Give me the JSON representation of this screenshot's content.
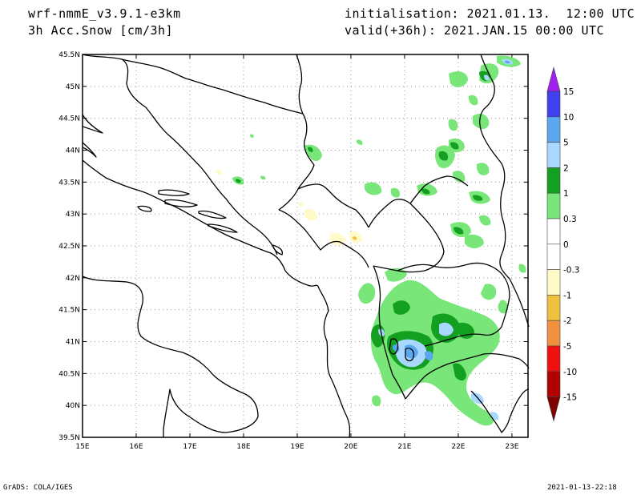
{
  "header": {
    "model": "wrf-nmmE_v3.9.1-e3km",
    "variable": "3h Acc.Snow [cm/3h]",
    "init": "initialisation: 2021.01.13.  12:00 UTC",
    "valid": "valid(+36h): 2021.JAN.15 00:00 UTC"
  },
  "footer": {
    "left": "GrADS: COLA/IGES",
    "right": "2021-01-13-22:18"
  },
  "map": {
    "lon_range": [
      15,
      23.3
    ],
    "lat_range": [
      39.5,
      45.5
    ],
    "lon_ticks": [
      {
        "value": 15,
        "label": "15E"
      },
      {
        "value": 16,
        "label": "16E"
      },
      {
        "value": 17,
        "label": "17E"
      },
      {
        "value": 18,
        "label": "18E"
      },
      {
        "value": 19,
        "label": "19E"
      },
      {
        "value": 20,
        "label": "20E"
      },
      {
        "value": 21,
        "label": "21E"
      },
      {
        "value": 22,
        "label": "22E"
      },
      {
        "value": 23,
        "label": "23E"
      }
    ],
    "lat_ticks": [
      {
        "value": 39.5,
        "label": "39.5N"
      },
      {
        "value": 40,
        "label": "40N"
      },
      {
        "value": 40.5,
        "label": "40.5N"
      },
      {
        "value": 41,
        "label": "41N"
      },
      {
        "value": 41.5,
        "label": "41.5N"
      },
      {
        "value": 42,
        "label": "42N"
      },
      {
        "value": 42.5,
        "label": "42.5N"
      },
      {
        "value": 43,
        "label": "43N"
      },
      {
        "value": 43.5,
        "label": "43.5N"
      },
      {
        "value": 44,
        "label": "44N"
      },
      {
        "value": 44.5,
        "label": "44.5N"
      },
      {
        "value": 45,
        "label": "45N"
      },
      {
        "value": 45.5,
        "label": "45.5N"
      }
    ],
    "grid": true
  },
  "legend": {
    "classes": [
      {
        "label": "15",
        "color": "#a020f0"
      },
      {
        "label": "10",
        "color": "#4040f0"
      },
      {
        "label": "5",
        "color": "#5ba8f0"
      },
      {
        "label": "2",
        "color": "#a8d8ff"
      },
      {
        "label": "1",
        "color": "#13a020"
      },
      {
        "label": "0.3",
        "color": "#78e678"
      },
      {
        "label": "0",
        "color": "#ffffff"
      },
      {
        "label": "-0.3",
        "color": "#ffffff"
      },
      {
        "label": "-1",
        "color": "#fffac8"
      },
      {
        "label": "-2",
        "color": "#f0c040"
      },
      {
        "label": "-5",
        "color": "#f09040"
      },
      {
        "label": "-10",
        "color": "#f01010"
      },
      {
        "label": "-15",
        "color": "#b00000"
      }
    ],
    "end_top_color": "#a020f0",
    "end_bottom_color": "#800000"
  }
}
